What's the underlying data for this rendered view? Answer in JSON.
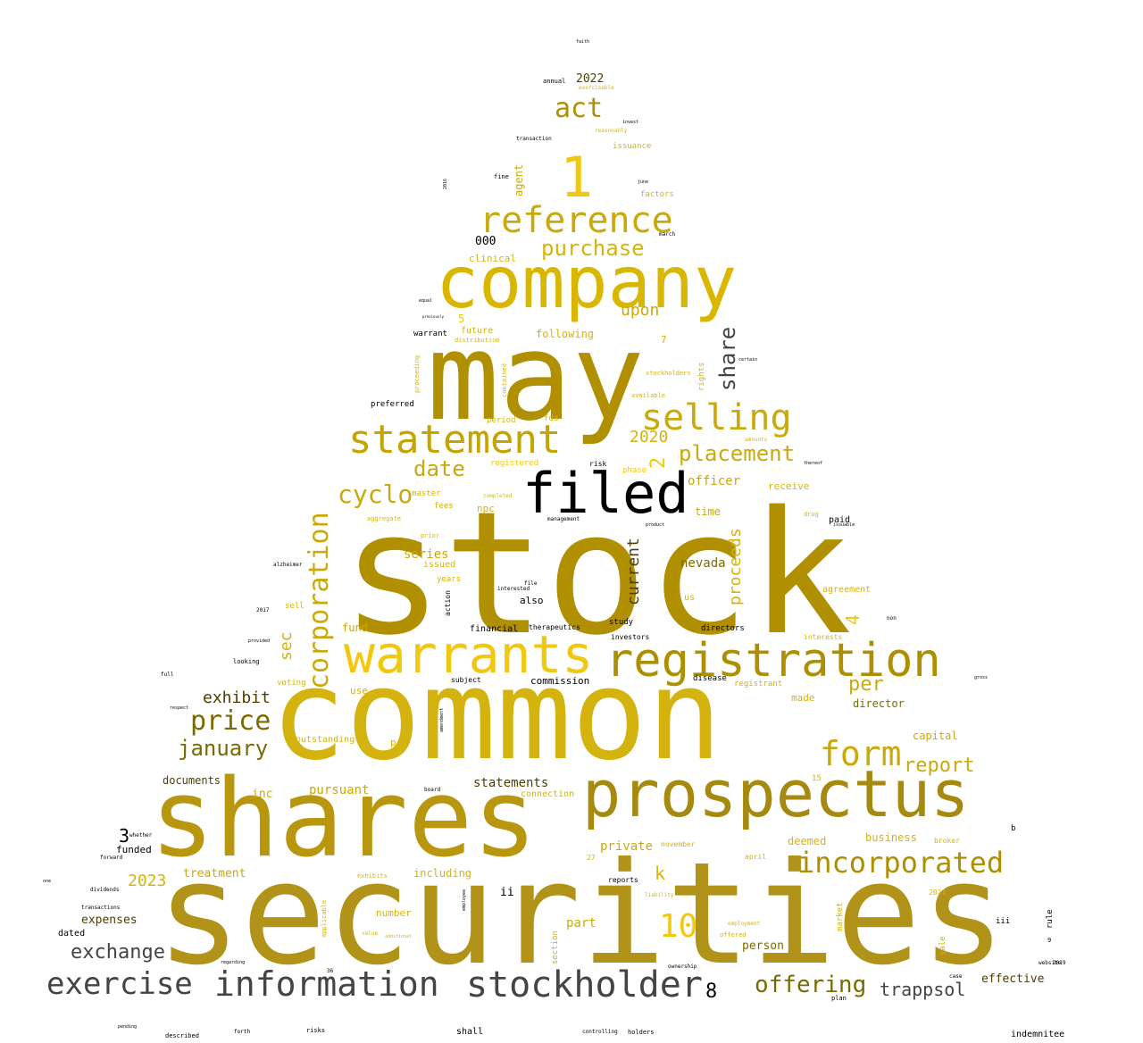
{
  "palette": {
    "gold_dark": "#b08f00",
    "gold_mid": "#c9a90c",
    "gold_bright": "#f2c80f",
    "olive": "#7a6a00",
    "brown": "#4d3d00",
    "gray_dark": "#444444",
    "black": "#000000"
  },
  "words": [
    {
      "text": "stock",
      "color": "#b08f00"
    },
    {
      "text": "securities",
      "color": "#b09318"
    },
    {
      "text": "common",
      "color": "#d4b30f"
    },
    {
      "text": "shares",
      "color": "#b8970f"
    },
    {
      "text": "may",
      "color": "#b08f00"
    },
    {
      "text": "company",
      "color": "#d9b700"
    },
    {
      "text": "prospectus",
      "color": "#a68a10"
    },
    {
      "text": "registration",
      "color": "#ad8f00"
    },
    {
      "text": "warrants",
      "color": "#f2c80f"
    },
    {
      "text": "filed",
      "color": "#000000"
    },
    {
      "text": "statement",
      "color": "#c4a400"
    },
    {
      "text": "incorporated",
      "color": "#ad8f00"
    },
    {
      "text": "information",
      "color": "#444444"
    },
    {
      "text": "stockholder",
      "color": "#444444"
    },
    {
      "text": "exercise",
      "color": "#444444"
    },
    {
      "text": "1",
      "color": "#f2c80f"
    },
    {
      "text": "reference",
      "color": "#c9a90c"
    },
    {
      "text": "selling",
      "color": "#c9a90c"
    },
    {
      "text": "form",
      "color": "#c9a90c"
    },
    {
      "text": "10",
      "color": "#f2c80f"
    },
    {
      "text": "offering",
      "color": "#7a6a00"
    },
    {
      "text": "corporation",
      "color": "#c9a90c"
    },
    {
      "text": "act",
      "color": "#b08f00"
    },
    {
      "text": "price",
      "color": "#7a6a00"
    },
    {
      "text": "placement",
      "color": "#c9a90c"
    },
    {
      "text": "cyclo",
      "color": "#c9a90c"
    },
    {
      "text": "date",
      "color": "#c9a90c"
    },
    {
      "text": "purchase",
      "color": "#d4b30f"
    },
    {
      "text": "january",
      "color": "#7a6a00"
    },
    {
      "text": "trappsol",
      "color": "#444444"
    },
    {
      "text": "share",
      "color": "#444444"
    },
    {
      "text": "exchange",
      "color": "#444444"
    },
    {
      "text": "report",
      "color": "#c9a90c"
    },
    {
      "text": "exhibit",
      "color": "#4d3d00"
    },
    {
      "text": "2020",
      "color": "#d4b30f"
    },
    {
      "text": "upon",
      "color": "#c9a90c"
    },
    {
      "text": "proceeds",
      "color": "#d4b30f"
    },
    {
      "text": "current",
      "color": "#4d3d00"
    },
    {
      "text": "per",
      "color": "#c9a90c"
    },
    {
      "text": "2023",
      "color": "#d4b30f"
    },
    {
      "text": "8",
      "color": "#000000"
    },
    {
      "text": "3",
      "color": "#000000"
    },
    {
      "text": "2",
      "color": "#f2c80f"
    },
    {
      "text": "4",
      "color": "#f2c80f"
    },
    {
      "text": "k",
      "color": "#d4b30f"
    },
    {
      "text": "sec",
      "color": "#d4b30f"
    },
    {
      "text": "statements",
      "color": "#4d3d00"
    },
    {
      "text": "pursuant",
      "color": "#c9a90c"
    },
    {
      "text": "series",
      "color": "#c9a90c"
    },
    {
      "text": "nevada",
      "color": "#7a6a00"
    },
    {
      "text": "officer",
      "color": "#c9a90c"
    },
    {
      "text": "private",
      "color": "#c9a90c"
    },
    {
      "text": "business",
      "color": "#d4b30f"
    },
    {
      "text": "capital",
      "color": "#c9a90c"
    },
    {
      "text": "director",
      "color": "#7a6a00"
    },
    {
      "text": "including",
      "color": "#d4b30f"
    },
    {
      "text": "treatment",
      "color": "#c9a90c"
    },
    {
      "text": "expenses",
      "color": "#4d3d00"
    },
    {
      "text": "documents",
      "color": "#4d3d00"
    },
    {
      "text": "inc",
      "color": "#c9a90c"
    },
    {
      "text": "part",
      "color": "#c9a90c"
    },
    {
      "text": "person",
      "color": "#7a6a00"
    },
    {
      "text": "effective",
      "color": "#4d3d00"
    },
    {
      "text": "fund",
      "color": "#c9a90c"
    },
    {
      "text": "time",
      "color": "#c9a90c"
    },
    {
      "text": "agent",
      "color": "#c9a90c"
    },
    {
      "text": "000",
      "color": "#000000"
    },
    {
      "text": "2022",
      "color": "#4d3d00"
    },
    {
      "text": "commission",
      "color": "#000000"
    },
    {
      "text": "clinical",
      "color": "#d4b30f"
    },
    {
      "text": "following",
      "color": "#d4b30f"
    },
    {
      "text": "deemed",
      "color": "#d4b30f"
    },
    {
      "text": "made",
      "color": "#d4b30f"
    },
    {
      "text": "receive",
      "color": "#d4b30f"
    },
    {
      "text": "use",
      "color": "#d4b30f"
    },
    {
      "text": "ii",
      "color": "#000000"
    },
    {
      "text": "number",
      "color": "#d4b30f"
    },
    {
      "text": "funded",
      "color": "#000000"
    },
    {
      "text": "npc",
      "color": "#d4b30f"
    },
    {
      "text": "future",
      "color": "#d4b30f"
    },
    {
      "text": "5",
      "color": "#f2c80f"
    },
    {
      "text": "7",
      "color": "#d4b30f"
    },
    {
      "text": "warrant",
      "color": "#000000"
    },
    {
      "text": "preferred",
      "color": "#000000"
    },
    {
      "text": "also",
      "color": "#000000"
    },
    {
      "text": "financial",
      "color": "#000000"
    },
    {
      "text": "study",
      "color": "#000000"
    },
    {
      "text": "investors",
      "color": "#000000"
    },
    {
      "text": "directors",
      "color": "#000000"
    },
    {
      "text": "therapeutics",
      "color": "#000000"
    },
    {
      "text": "shall",
      "color": "#000000"
    },
    {
      "text": "indemnitee",
      "color": "#000000"
    },
    {
      "text": "agreement",
      "color": "#d4b30f"
    },
    {
      "text": "outstanding",
      "color": "#d4b30f"
    },
    {
      "text": "pre",
      "color": "#d4b30f"
    },
    {
      "text": "connection",
      "color": "#d4b30f"
    },
    {
      "text": "factors",
      "color": "#d4b30f"
    },
    {
      "text": "issuance",
      "color": "#d4b30f"
    },
    {
      "text": "registered",
      "color": "#f2c80f"
    },
    {
      "text": "period",
      "color": "#d4b30f"
    },
    {
      "text": "fda",
      "color": "#d4b30f"
    },
    {
      "text": "paid",
      "color": "#000000"
    },
    {
      "text": "voting",
      "color": "#d4b30f"
    },
    {
      "text": "us",
      "color": "#d4b30f"
    },
    {
      "text": "phase",
      "color": "#f2c80f"
    },
    {
      "text": "rights",
      "color": "#d4b30f"
    },
    {
      "text": "issued",
      "color": "#d4b30f"
    },
    {
      "text": "years",
      "color": "#d4b30f"
    },
    {
      "text": "sell",
      "color": "#d4b30f"
    },
    {
      "text": "registrant",
      "color": "#d4b30f"
    },
    {
      "text": "disease",
      "color": "#000000"
    },
    {
      "text": "subject",
      "color": "#000000"
    },
    {
      "text": "market",
      "color": "#d4b30f"
    },
    {
      "text": "15",
      "color": "#d4b30f"
    },
    {
      "text": "sale",
      "color": "#d4b30f"
    },
    {
      "text": "rule",
      "color": "#000000"
    },
    {
      "text": "section",
      "color": "#d4b30f"
    },
    {
      "text": "dated",
      "color": "#000000"
    },
    {
      "text": "fees",
      "color": "#d4b30f"
    },
    {
      "text": "master",
      "color": "#d4b30f"
    },
    {
      "text": "interests",
      "color": "#d4b30f"
    },
    {
      "text": "broker",
      "color": "#d4b30f"
    },
    {
      "text": "november",
      "color": "#d4b30f"
    },
    {
      "text": "27",
      "color": "#d4b30f"
    },
    {
      "text": "2021",
      "color": "#d4b30f"
    },
    {
      "text": "april",
      "color": "#d4b30f"
    },
    {
      "text": "reports",
      "color": "#000000"
    },
    {
      "text": "action",
      "color": "#000000"
    },
    {
      "text": "risk",
      "color": "#000000"
    },
    {
      "text": "b",
      "color": "#000000"
    },
    {
      "text": "iii",
      "color": "#000000"
    },
    {
      "text": "9",
      "color": "#000000"
    },
    {
      "text": "fine",
      "color": "#000000"
    },
    {
      "text": "annual",
      "color": "#000000"
    },
    {
      "text": "transaction",
      "color": "#000000"
    },
    {
      "text": "looking",
      "color": "#000000"
    },
    {
      "text": "dividends",
      "color": "#000000"
    },
    {
      "text": "forward",
      "color": "#000000"
    },
    {
      "text": "transactions",
      "color": "#000000"
    },
    {
      "text": "whether",
      "color": "#000000"
    },
    {
      "text": "one",
      "color": "#000000"
    },
    {
      "text": "full",
      "color": "#000000"
    },
    {
      "text": "respect",
      "color": "#000000"
    },
    {
      "text": "provided",
      "color": "#000000"
    },
    {
      "text": "alzheimer",
      "color": "#000000"
    },
    {
      "text": "2017",
      "color": "#000000"
    },
    {
      "text": "2019",
      "color": "#000000"
    },
    {
      "text": "2016",
      "color": "#000000"
    },
    {
      "text": "ownership",
      "color": "#000000"
    },
    {
      "text": "regarding",
      "color": "#000000"
    },
    {
      "text": "holders",
      "color": "#000000"
    },
    {
      "text": "controlling",
      "color": "#000000"
    },
    {
      "text": "forth",
      "color": "#000000"
    },
    {
      "text": "risks",
      "color": "#000000"
    },
    {
      "text": "described",
      "color": "#000000"
    },
    {
      "text": "pending",
      "color": "#000000"
    },
    {
      "text": "board",
      "color": "#000000"
    },
    {
      "text": "file",
      "color": "#000000"
    },
    {
      "text": "interested",
      "color": "#000000"
    },
    {
      "text": "management",
      "color": "#000000"
    },
    {
      "text": "product",
      "color": "#000000"
    },
    {
      "text": "issuable",
      "color": "#000000"
    },
    {
      "text": "plan",
      "color": "#000000"
    },
    {
      "text": "website",
      "color": "#000000"
    },
    {
      "text": "case",
      "color": "#000000"
    },
    {
      "text": "non",
      "color": "#000000"
    },
    {
      "text": "march",
      "color": "#000000"
    },
    {
      "text": "june",
      "color": "#000000"
    },
    {
      "text": "invest",
      "color": "#000000"
    },
    {
      "text": "faith",
      "color": "#000000"
    },
    {
      "text": "previously",
      "color": "#000000"
    },
    {
      "text": "equal",
      "color": "#000000"
    },
    {
      "text": "certain",
      "color": "#000000"
    },
    {
      "text": "thereof",
      "color": "#000000"
    },
    {
      "text": "gross",
      "color": "#000000"
    },
    {
      "text": "36",
      "color": "#000000"
    },
    {
      "text": "exercisable",
      "color": "#d4b30f"
    },
    {
      "text": "reasonably",
      "color": "#d4b30f"
    },
    {
      "text": "available",
      "color": "#d4b30f"
    },
    {
      "text": "stockholders",
      "color": "#d4b30f"
    },
    {
      "text": "employee",
      "color": "#000000"
    },
    {
      "text": "amendment",
      "color": "#000000"
    },
    {
      "text": "proceeding",
      "color": "#d4b30f"
    },
    {
      "text": "contained",
      "color": "#d4b30f"
    },
    {
      "text": "distribution",
      "color": "#d4b30f"
    },
    {
      "text": "applicable",
      "color": "#d4b30f"
    },
    {
      "text": "exhibits",
      "color": "#d4b30f"
    },
    {
      "text": "liability",
      "color": "#d4b30f"
    },
    {
      "text": "employment",
      "color": "#d4b30f"
    },
    {
      "text": "offered",
      "color": "#d4b30f"
    },
    {
      "text": "amounts",
      "color": "#d4b30f"
    },
    {
      "text": "aggregate",
      "color": "#d4b30f"
    },
    {
      "text": "prior",
      "color": "#d4b30f"
    },
    {
      "text": "completed",
      "color": "#d4b30f"
    },
    {
      "text": "drug",
      "color": "#d4b30f"
    },
    {
      "text": "value",
      "color": "#d4b30f"
    },
    {
      "text": "additional",
      "color": "#d4b30f"
    }
  ]
}
